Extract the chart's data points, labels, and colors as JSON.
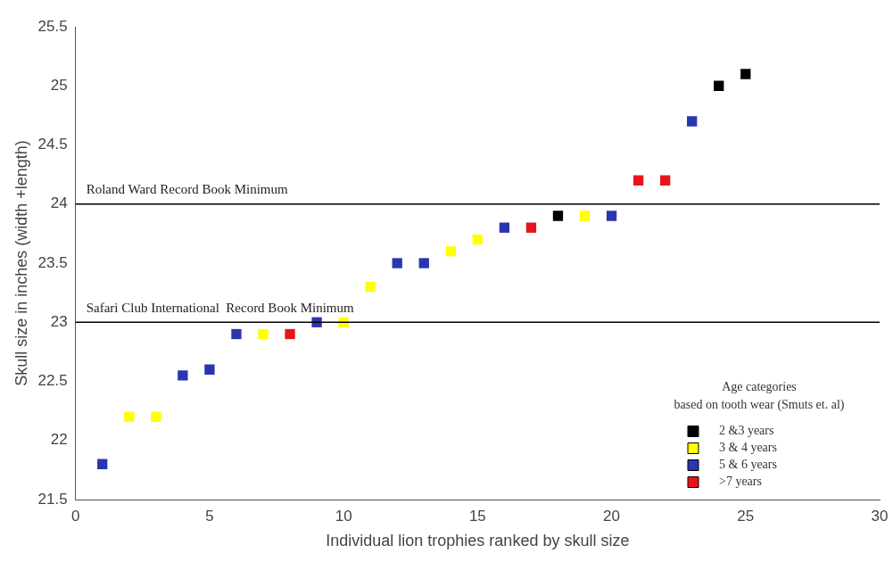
{
  "chart_data": {
    "type": "scatter",
    "xlabel": "Individual lion trophies ranked by skull size",
    "ylabel": "Skull size in inches (width +length)",
    "legend_title": "Age categories\nbased on tooth wear (Smuts et. al)",
    "xlim": [
      0,
      30
    ],
    "xticks": [
      0,
      5,
      10,
      15,
      20,
      25,
      30
    ],
    "ylim": [
      21.5,
      25.5
    ],
    "yticks": [
      21.5,
      22,
      22.5,
      23,
      23.5,
      24,
      24.5,
      25,
      25.5
    ],
    "grid": false,
    "legend": "bottom right",
    "marker": "square",
    "ref_lines": [
      {
        "axis": "y",
        "value": 24,
        "label": "Roland Ward Record Book Minimum",
        "color": "#000000"
      },
      {
        "axis": "y",
        "value": 23,
        "label": "Safari Club International  Record Book Minimum",
        "color": "#000000"
      }
    ],
    "series": [
      {
        "name": "2 &3 years",
        "color": "#000000",
        "x": [
          18,
          24,
          25
        ],
        "values": [
          23.9,
          25.0,
          25.1
        ]
      },
      {
        "name": "3 & 4 years",
        "color": "#ffff00",
        "x": [
          2,
          3,
          7,
          10,
          11,
          14,
          15,
          19
        ],
        "values": [
          22.2,
          22.2,
          22.9,
          23.0,
          23.3,
          23.6,
          23.7,
          23.9
        ]
      },
      {
        "name": "5 & 6 years",
        "color": "#2b35b0",
        "x": [
          1,
          4,
          5,
          6,
          9,
          12,
          13,
          16,
          20,
          23
        ],
        "values": [
          21.8,
          22.55,
          22.6,
          22.9,
          23.0,
          23.5,
          23.5,
          23.8,
          23.9,
          24.7
        ]
      },
      {
        "name": ">7 years",
        "color": "#e8141c",
        "x": [
          8,
          17,
          21,
          22
        ],
        "values": [
          22.9,
          23.8,
          24.2,
          24.2
        ]
      }
    ]
  }
}
